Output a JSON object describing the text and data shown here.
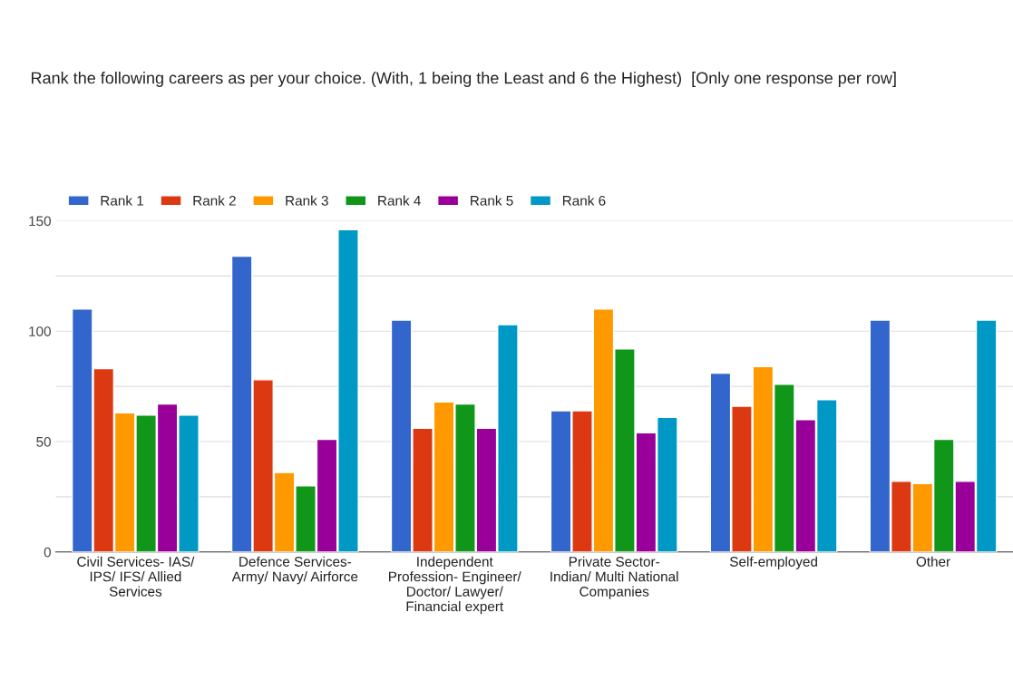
{
  "chart_data": {
    "type": "bar",
    "title": "Rank the following careers as per your choice. (With, 1 being the Least and 6 the Highest)  [Only one response per row]",
    "categories": [
      "Civil Services- IAS/ IPS/ IFS/ Allied Services",
      "Defence Services- Army/ Navy/ Airforce",
      "Independent Profession- Engineer/ Doctor/ Lawyer/ Financial expert",
      "Private Sector- Indian/ Multi National Companies",
      "Self-employed",
      "Other"
    ],
    "series": [
      {
        "name": "Rank 1",
        "color": "#3366cc",
        "values": [
          110,
          134,
          105,
          64,
          81,
          105
        ]
      },
      {
        "name": "Rank 2",
        "color": "#dc3912",
        "values": [
          83,
          78,
          56,
          64,
          66,
          32
        ]
      },
      {
        "name": "Rank 3",
        "color": "#ff9900",
        "values": [
          63,
          36,
          68,
          110,
          84,
          31
        ]
      },
      {
        "name": "Rank 4",
        "color": "#109618",
        "values": [
          62,
          30,
          67,
          92,
          76,
          51
        ]
      },
      {
        "name": "Rank 5",
        "color": "#990099",
        "values": [
          67,
          51,
          56,
          54,
          60,
          32
        ]
      },
      {
        "name": "Rank 6",
        "color": "#0099c6",
        "values": [
          62,
          146,
          103,
          61,
          69,
          105
        ]
      }
    ],
    "ylim": [
      0,
      150
    ],
    "yticks": [
      0,
      {
        "value": 25,
        "label": null
      },
      50,
      {
        "value": 75,
        "label": null
      },
      100,
      {
        "value": 125,
        "label": null
      },
      150
    ],
    "grid": "y",
    "legend": "top left"
  }
}
